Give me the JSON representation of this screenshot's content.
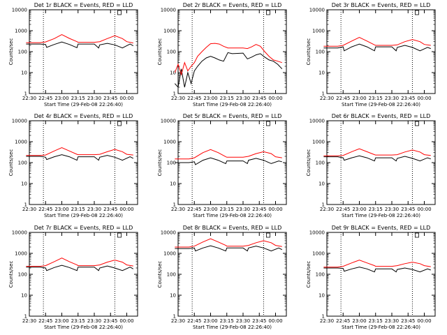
{
  "chart_data": [
    {
      "type": "line",
      "title": "Det 1r BLACK = Events, RED = LLD",
      "xlabel": "Start Time (29-Feb-08 22:26:40)",
      "ylabel": "Counts/sec",
      "xticks": [
        "22:30",
        "22:45",
        "23:00",
        "23:15",
        "23:30",
        "23:45",
        "00:00"
      ],
      "ylog": true,
      "yticks": [
        "1",
        "10",
        "100",
        "1000",
        "10000"
      ],
      "ylim": [
        1,
        10000
      ],
      "vlines": [
        "22:43",
        "23:49"
      ],
      "series": [
        {
          "color": "#000000",
          "x": [
            "22:27",
            "22:40",
            "22:45",
            "22:46",
            "22:53",
            "23:00",
            "23:07",
            "23:14",
            "23:15",
            "23:30",
            "23:34",
            "23:35",
            "23:42",
            "23:49",
            "23:56",
            "00:03",
            "00:06"
          ],
          "y": [
            230,
            230,
            220,
            160,
            220,
            290,
            220,
            155,
            230,
            230,
            150,
            210,
            250,
            210,
            150,
            230,
            190
          ]
        },
        {
          "color": "#ff0000",
          "x": [
            "22:27",
            "22:40",
            "22:45",
            "22:53",
            "23:00",
            "23:07",
            "23:14",
            "23:15",
            "23:30",
            "23:35",
            "23:42",
            "23:49",
            "23:56",
            "00:00",
            "00:06"
          ],
          "y": [
            270,
            270,
            290,
            420,
            650,
            430,
            300,
            280,
            280,
            300,
            420,
            580,
            420,
            300,
            260
          ]
        }
      ]
    },
    {
      "type": "line",
      "title": "Det 2r BLACK = Events, RED = LLD",
      "xlabel": "Start Time (29-Feb-08 22:26:40)",
      "ylabel": "Counts/sec",
      "xticks": [
        "22:30",
        "22:45",
        "23:00",
        "23:15",
        "23:30",
        "23:45",
        "00:00"
      ],
      "ylog": true,
      "yticks": [
        "1",
        "10",
        "100",
        "1000",
        "10000"
      ],
      "ylim": [
        1,
        10000
      ],
      "vlines": [
        "22:43",
        "23:49"
      ],
      "series": [
        {
          "color": "#000000",
          "x": [
            "22:27",
            "22:30",
            "22:33",
            "22:36",
            "22:39",
            "22:42",
            "22:45",
            "22:48",
            "22:52",
            "22:56",
            "23:00",
            "23:04",
            "23:08",
            "23:12",
            "23:16",
            "23:20",
            "23:30",
            "23:34",
            "23:38",
            "23:42",
            "23:46",
            "23:50",
            "23:54",
            "23:58",
            "00:02",
            "00:06"
          ],
          "y": [
            3,
            2,
            15,
            2,
            10,
            3,
            12,
            20,
            35,
            50,
            60,
            50,
            40,
            35,
            90,
            80,
            85,
            45,
            55,
            70,
            80,
            55,
            40,
            35,
            25,
            15
          ]
        },
        {
          "color": "#ff0000",
          "x": [
            "22:27",
            "22:30",
            "22:33",
            "22:36",
            "22:39",
            "22:42",
            "22:45",
            "22:48",
            "22:52",
            "22:56",
            "23:00",
            "23:04",
            "23:08",
            "23:12",
            "23:16",
            "23:20",
            "23:30",
            "23:34",
            "23:38",
            "23:42",
            "23:46",
            "23:50",
            "23:54",
            "23:58",
            "00:02",
            "00:06"
          ],
          "y": [
            10,
            25,
            8,
            30,
            12,
            20,
            30,
            60,
            100,
            160,
            240,
            250,
            230,
            180,
            150,
            150,
            150,
            140,
            170,
            220,
            180,
            100,
            60,
            40,
            35,
            30
          ]
        }
      ]
    },
    {
      "type": "line",
      "title": "Det 3r BLACK = Events, RED = LLD",
      "xlabel": "Start Time (29-Feb-08 22:26:40)",
      "ylabel": "Counts/sec",
      "xticks": [
        "22:30",
        "22:45",
        "23:00",
        "23:15",
        "23:30",
        "23:45",
        "00:00"
      ],
      "ylog": true,
      "yticks": [
        "1",
        "10",
        "100",
        "1000",
        "10000"
      ],
      "ylim": [
        1,
        10000
      ],
      "vlines": [
        "22:43",
        "23:49"
      ],
      "series": [
        {
          "color": "#000000",
          "x": [
            "22:27",
            "22:40",
            "22:45",
            "22:46",
            "22:53",
            "23:00",
            "23:07",
            "23:14",
            "23:15",
            "23:30",
            "23:34",
            "23:35",
            "23:42",
            "23:49",
            "23:56",
            "00:03",
            "00:06"
          ],
          "y": [
            150,
            150,
            170,
            110,
            170,
            230,
            170,
            110,
            170,
            170,
            110,
            160,
            200,
            160,
            110,
            160,
            140
          ]
        },
        {
          "color": "#ff0000",
          "x": [
            "22:27",
            "22:40",
            "22:45",
            "22:53",
            "23:00",
            "23:07",
            "23:14",
            "23:15",
            "23:30",
            "23:35",
            "23:42",
            "23:49",
            "23:56",
            "00:00",
            "00:06"
          ],
          "y": [
            180,
            180,
            200,
            320,
            480,
            320,
            210,
            200,
            200,
            210,
            300,
            380,
            300,
            220,
            200
          ]
        }
      ]
    },
    {
      "type": "line",
      "title": "Det 4r BLACK = Events, RED = LLD",
      "xlabel": "Start Time (29-Feb-08 22:26:40)",
      "ylabel": "Counts/sec",
      "xticks": [
        "22:30",
        "22:45",
        "23:00",
        "23:15",
        "23:30",
        "23:45",
        "00:00"
      ],
      "ylog": true,
      "yticks": [
        "1",
        "10",
        "100",
        "1000",
        "10000"
      ],
      "ylim": [
        1,
        10000
      ],
      "vlines": [
        "22:43",
        "23:49"
      ],
      "series": [
        {
          "color": "#000000",
          "x": [
            "22:27",
            "22:40",
            "22:45",
            "22:46",
            "22:53",
            "23:00",
            "23:07",
            "23:14",
            "23:15",
            "23:30",
            "23:34",
            "23:35",
            "23:42",
            "23:49",
            "23:56",
            "00:03",
            "00:06"
          ],
          "y": [
            200,
            200,
            180,
            140,
            190,
            240,
            190,
            130,
            190,
            190,
            130,
            180,
            220,
            180,
            130,
            190,
            160
          ]
        },
        {
          "color": "#ff0000",
          "x": [
            "22:27",
            "22:40",
            "22:45",
            "22:53",
            "23:00",
            "23:07",
            "23:14",
            "23:15",
            "23:30",
            "23:35",
            "23:42",
            "23:49",
            "23:56",
            "00:00",
            "00:06"
          ],
          "y": [
            220,
            220,
            230,
            360,
            520,
            360,
            250,
            240,
            240,
            250,
            330,
            430,
            330,
            250,
            230
          ]
        }
      ]
    },
    {
      "type": "line",
      "title": "Det 5r BLACK = Events, RED = LLD",
      "xlabel": "Start Time (29-Feb-08 22:26:40)",
      "ylabel": "Counts/sec",
      "xticks": [
        "22:30",
        "22:45",
        "23:00",
        "23:15",
        "23:30",
        "23:45",
        "00:00"
      ],
      "ylog": true,
      "yticks": [
        "1",
        "10",
        "100",
        "1000",
        "10000"
      ],
      "ylim": [
        1,
        10000
      ],
      "vlines": [
        "22:43",
        "23:49"
      ],
      "series": [
        {
          "color": "#000000",
          "x": [
            "22:27",
            "22:40",
            "22:45",
            "22:46",
            "22:53",
            "23:00",
            "23:07",
            "23:14",
            "23:15",
            "23:30",
            "23:34",
            "23:35",
            "23:42",
            "23:49",
            "23:56",
            "00:03",
            "00:06"
          ],
          "y": [
            100,
            100,
            110,
            80,
            130,
            170,
            130,
            90,
            120,
            120,
            90,
            130,
            160,
            130,
            90,
            120,
            110
          ]
        },
        {
          "color": "#ff0000",
          "x": [
            "22:27",
            "22:40",
            "22:45",
            "22:53",
            "23:00",
            "23:07",
            "23:14",
            "23:15",
            "23:30",
            "23:35",
            "23:42",
            "23:49",
            "23:56",
            "00:00",
            "00:06"
          ],
          "y": [
            150,
            150,
            170,
            300,
            420,
            300,
            190,
            180,
            180,
            200,
            270,
            330,
            270,
            190,
            170
          ]
        }
      ]
    },
    {
      "type": "line",
      "title": "Det 6r BLACK = Events, RED = LLD",
      "xlabel": "Start Time (29-Feb-08 22:26:40)",
      "ylabel": "Counts/sec",
      "xticks": [
        "22:30",
        "22:45",
        "23:00",
        "23:15",
        "23:30",
        "23:45",
        "00:00"
      ],
      "ylog": true,
      "yticks": [
        "1",
        "10",
        "100",
        "1000",
        "10000"
      ],
      "ylim": [
        1,
        10000
      ],
      "vlines": [
        "22:43",
        "23:49"
      ],
      "series": [
        {
          "color": "#000000",
          "x": [
            "22:27",
            "22:40",
            "22:45",
            "22:46",
            "22:53",
            "23:00",
            "23:07",
            "23:14",
            "23:15",
            "23:30",
            "23:34",
            "23:35",
            "23:42",
            "23:49",
            "23:56",
            "00:03",
            "00:06"
          ],
          "y": [
            190,
            190,
            170,
            130,
            170,
            210,
            170,
            120,
            170,
            170,
            120,
            160,
            200,
            160,
            120,
            170,
            150
          ]
        },
        {
          "color": "#ff0000",
          "x": [
            "22:27",
            "22:40",
            "22:45",
            "22:53",
            "23:00",
            "23:07",
            "23:14",
            "23:15",
            "23:30",
            "23:35",
            "23:42",
            "23:49",
            "23:56",
            "00:00",
            "00:06"
          ],
          "y": [
            210,
            210,
            220,
            330,
            460,
            330,
            240,
            230,
            230,
            240,
            320,
            400,
            320,
            240,
            220
          ]
        }
      ]
    },
    {
      "type": "line",
      "title": "Det 7r BLACK = Events, RED = LLD",
      "xlabel": "Start Time (29-Feb-08 22:26:40)",
      "ylabel": "Counts/sec",
      "xticks": [
        "22:30",
        "22:45",
        "23:00",
        "23:15",
        "23:30",
        "23:45",
        "00:00"
      ],
      "ylog": true,
      "yticks": [
        "1",
        "10",
        "100",
        "1000",
        "10000"
      ],
      "ylim": [
        1,
        10000
      ],
      "vlines": [
        "22:43",
        "23:49"
      ],
      "series": [
        {
          "color": "#000000",
          "x": [
            "22:27",
            "22:40",
            "22:45",
            "22:46",
            "22:53",
            "23:00",
            "23:07",
            "23:14",
            "23:15",
            "23:30",
            "23:34",
            "23:35",
            "23:42",
            "23:49",
            "23:56",
            "00:03",
            "00:06"
          ],
          "y": [
            220,
            220,
            200,
            150,
            210,
            270,
            210,
            150,
            220,
            220,
            150,
            200,
            250,
            200,
            150,
            220,
            180
          ]
        },
        {
          "color": "#ff0000",
          "x": [
            "22:27",
            "22:40",
            "22:45",
            "22:53",
            "23:00",
            "23:07",
            "23:14",
            "23:15",
            "23:30",
            "23:35",
            "23:42",
            "23:49",
            "23:56",
            "00:00",
            "00:06"
          ],
          "y": [
            240,
            240,
            260,
            400,
            600,
            400,
            280,
            260,
            260,
            280,
            380,
            480,
            380,
            280,
            250
          ]
        }
      ]
    },
    {
      "type": "line",
      "title": "Det 8r BLACK = Events, RED = LLD",
      "xlabel": "Start Time (29-Feb-08 22:26:40)",
      "ylabel": "Counts/sec",
      "xticks": [
        "22:30",
        "22:45",
        "23:00",
        "23:15",
        "23:30",
        "23:45",
        "00:00"
      ],
      "ylog": true,
      "yticks": [
        "1",
        "10",
        "100",
        "1000",
        "10000"
      ],
      "ylim": [
        1,
        10000
      ],
      "vlines": [
        "22:43",
        "23:49"
      ],
      "series": [
        {
          "color": "#000000",
          "x": [
            "22:27",
            "22:40",
            "22:45",
            "22:46",
            "22:53",
            "23:00",
            "23:07",
            "23:14",
            "23:15",
            "23:30",
            "23:34",
            "23:35",
            "23:42",
            "23:49",
            "23:56",
            "00:03",
            "00:06"
          ],
          "y": [
            1700,
            1700,
            1800,
            1300,
            1800,
            2300,
            1800,
            1300,
            1800,
            1800,
            1300,
            1800,
            2200,
            1800,
            1300,
            1800,
            1500
          ]
        },
        {
          "color": "#ff0000",
          "x": [
            "22:27",
            "22:40",
            "22:45",
            "22:53",
            "23:00",
            "23:07",
            "23:14",
            "23:15",
            "23:30",
            "23:35",
            "23:42",
            "23:49",
            "23:56",
            "00:00",
            "00:06"
          ],
          "y": [
            2000,
            2000,
            2200,
            3500,
            5000,
            3500,
            2400,
            2200,
            2200,
            2400,
            3200,
            4000,
            3200,
            2400,
            2100
          ]
        }
      ]
    },
    {
      "type": "line",
      "title": "Det 9r BLACK = Events, RED = LLD",
      "xlabel": "Start Time (29-Feb-08 22:26:40)",
      "ylabel": "Counts/sec",
      "xticks": [
        "22:30",
        "22:45",
        "23:00",
        "23:15",
        "23:30",
        "23:45",
        "00:00"
      ],
      "ylog": true,
      "yticks": [
        "1",
        "10",
        "100",
        "1000",
        "10000"
      ],
      "ylim": [
        1,
        10000
      ],
      "vlines": [
        "22:43",
        "23:49"
      ],
      "series": [
        {
          "color": "#000000",
          "x": [
            "22:27",
            "22:40",
            "22:45",
            "22:46",
            "22:53",
            "23:00",
            "23:07",
            "23:14",
            "23:15",
            "23:30",
            "23:34",
            "23:35",
            "23:42",
            "23:49",
            "23:56",
            "00:03",
            "00:06"
          ],
          "y": [
            200,
            200,
            190,
            140,
            180,
            220,
            180,
            130,
            180,
            180,
            130,
            170,
            200,
            170,
            130,
            180,
            160
          ]
        },
        {
          "color": "#ff0000",
          "x": [
            "22:27",
            "22:40",
            "22:45",
            "22:53",
            "23:00",
            "23:07",
            "23:14",
            "23:15",
            "23:30",
            "23:35",
            "23:42",
            "23:49",
            "23:56",
            "00:00",
            "00:06"
          ],
          "y": [
            220,
            220,
            240,
            350,
            480,
            350,
            260,
            240,
            240,
            260,
            320,
            380,
            320,
            260,
            230
          ]
        }
      ]
    }
  ]
}
